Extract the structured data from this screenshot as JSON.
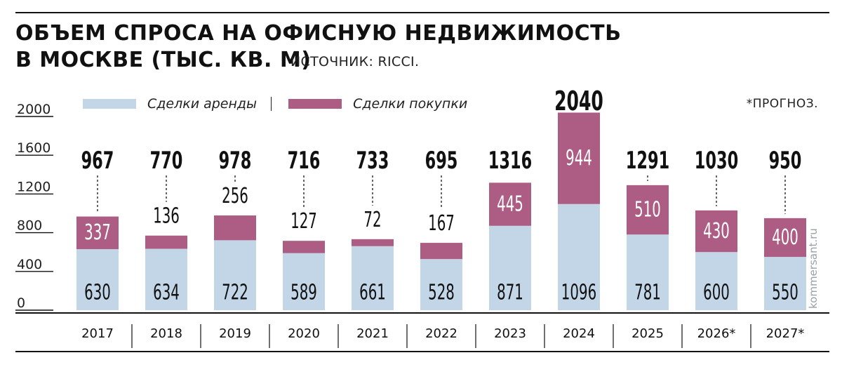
{
  "title_line1": "ОБЪЕМ СПРОСА НА ОФИСНУЮ НЕДВИЖИМОСТЬ",
  "title_line2": "В МОСКВЕ (ТЫС. КВ. М)",
  "source": "ИСТОЧНИК: RICCI.",
  "forecast_note": "*ПРОГНОЗ.",
  "watermark": "kommersant.ru",
  "colors": {
    "lease": "#c3d6e8",
    "purchase": "#ad5c84",
    "text": "#111111"
  },
  "chart_data": {
    "type": "bar",
    "stacked": true,
    "categories": [
      "2017",
      "2018",
      "2019",
      "2020",
      "2021",
      "2022",
      "2023",
      "2024",
      "2025",
      "2026*",
      "2027*"
    ],
    "series": [
      {
        "name": "Сделки аренды",
        "values": [
          630,
          634,
          722,
          589,
          661,
          528,
          871,
          1096,
          781,
          600,
          550
        ]
      },
      {
        "name": "Сделки покупки",
        "values": [
          337,
          136,
          256,
          127,
          72,
          167,
          445,
          944,
          510,
          430,
          400
        ]
      }
    ],
    "totals": [
      "967",
      "770",
      "978",
      "716",
      "733",
      "695",
      "1316",
      "2040",
      "1291",
      "1030",
      "950"
    ],
    "y_ticks": [
      "0",
      "400",
      "800",
      "1200",
      "1600",
      "2000"
    ],
    "ylim": [
      0,
      2000
    ],
    "legend_position": "top-left",
    "grid": false
  }
}
